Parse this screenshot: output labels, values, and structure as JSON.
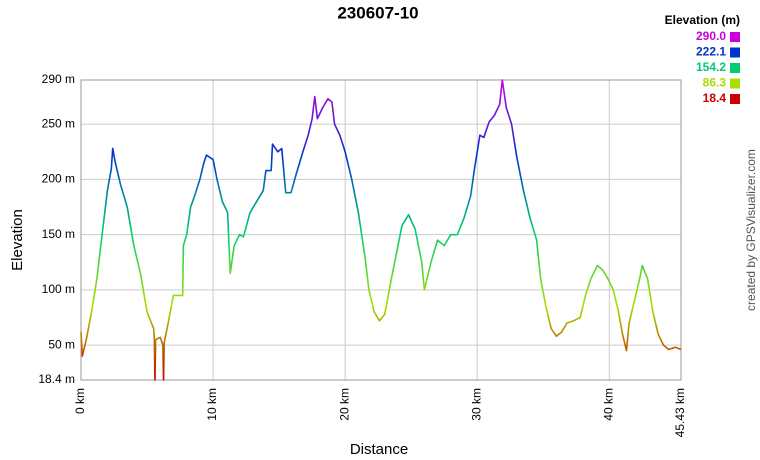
{
  "chart_data": {
    "type": "line",
    "title": "230607-10",
    "x_label": "Distance",
    "y_label": "Elevation",
    "credit": "created by GPSVisualizer.com",
    "legend_title": "Elevation (m)",
    "color_scale": [
      {
        "value": 290.0,
        "label": "290.0",
        "color": "#cc00dd"
      },
      {
        "value": 222.1,
        "label": "222.1",
        "color": "#0033cc"
      },
      {
        "value": 154.2,
        "label": "154.2",
        "color": "#00cc77"
      },
      {
        "value": 86.3,
        "label": "86.3",
        "color": "#aadd00"
      },
      {
        "value": 18.4,
        "label": "18.4",
        "color": "#cc0000"
      }
    ],
    "grid": true,
    "xlim": [
      0,
      45.43
    ],
    "ylim": [
      18.4,
      290
    ],
    "xticks": [
      {
        "value": 0,
        "label": "0 km"
      },
      {
        "value": 10,
        "label": "10 km"
      },
      {
        "value": 20,
        "label": "20 km"
      },
      {
        "value": 30,
        "label": "30 km"
      },
      {
        "value": 40,
        "label": "40 km"
      },
      {
        "value": 45.43,
        "label": "45.43 km"
      }
    ],
    "yticks": [
      {
        "value": 18.4,
        "label": "18.4 m"
      },
      {
        "value": 50,
        "label": "50 m"
      },
      {
        "value": 100,
        "label": "100 m"
      },
      {
        "value": 150,
        "label": "150 m"
      },
      {
        "value": 200,
        "label": "200 m"
      },
      {
        "value": 250,
        "label": "250 m"
      },
      {
        "value": 290,
        "label": "290 m"
      }
    ],
    "x": [
      0,
      0.1,
      0.4,
      0.8,
      1.2,
      1.6,
      2.0,
      2.3,
      2.4,
      2.6,
      3.0,
      3.5,
      4.0,
      4.5,
      5.0,
      5.5,
      5.55,
      5.6,
      5.65,
      6.0,
      6.2,
      6.25,
      6.3,
      6.6,
      7.0,
      7.7,
      7.75,
      8.0,
      8.3,
      8.6,
      9.0,
      9.3,
      9.5,
      10.0,
      10.3,
      10.7,
      11.1,
      11.3,
      11.6,
      12.0,
      12.3,
      12.8,
      13.3,
      13.8,
      14.0,
      14.4,
      14.5,
      14.9,
      15.2,
      15.5,
      15.9,
      16.3,
      16.8,
      17.2,
      17.5,
      17.7,
      17.9,
      18.3,
      18.7,
      19.0,
      19.2,
      19.6,
      20.0,
      20.5,
      21.0,
      21.5,
      21.8,
      22.2,
      22.6,
      23.0,
      23.5,
      24.0,
      24.3,
      24.8,
      25.3,
      25.8,
      26.0,
      26.5,
      27.0,
      27.5,
      28.0,
      28.5,
      29.0,
      29.5,
      29.8,
      30.2,
      30.5,
      30.9,
      31.3,
      31.7,
      31.9,
      32.2,
      32.6,
      33.0,
      33.5,
      34.0,
      34.5,
      34.8,
      35.2,
      35.6,
      36.0,
      36.4,
      36.8,
      37.3,
      37.8,
      38.2,
      38.6,
      39.1,
      39.5,
      39.9,
      40.3,
      40.7,
      41.0,
      41.3,
      41.5,
      41.9,
      42.3,
      42.5,
      42.9,
      43.3,
      43.7,
      44.1,
      44.5,
      45.0,
      45.43
    ],
    "values": [
      62,
      40,
      55,
      80,
      110,
      150,
      190,
      210,
      228,
      215,
      195,
      175,
      140,
      115,
      80,
      65,
      56,
      18.4,
      55,
      57,
      50,
      18.4,
      52,
      70,
      95,
      95,
      140,
      150,
      175,
      185,
      200,
      215,
      222,
      218,
      200,
      180,
      170,
      115,
      140,
      150,
      148,
      170,
      180,
      190,
      208,
      208,
      232,
      225,
      228,
      188,
      188,
      205,
      225,
      240,
      255,
      275,
      255,
      265,
      273,
      270,
      250,
      240,
      225,
      200,
      170,
      130,
      100,
      80,
      72,
      78,
      110,
      140,
      158,
      168,
      155,
      125,
      100,
      125,
      145,
      140,
      150,
      150,
      165,
      185,
      210,
      240,
      238,
      252,
      258,
      268,
      290,
      265,
      250,
      220,
      190,
      165,
      145,
      110,
      85,
      65,
      58,
      62,
      70,
      72,
      75,
      95,
      110,
      122,
      118,
      110,
      100,
      80,
      60,
      45,
      70,
      90,
      110,
      122,
      110,
      80,
      60,
      50,
      46,
      48,
      46
    ]
  }
}
